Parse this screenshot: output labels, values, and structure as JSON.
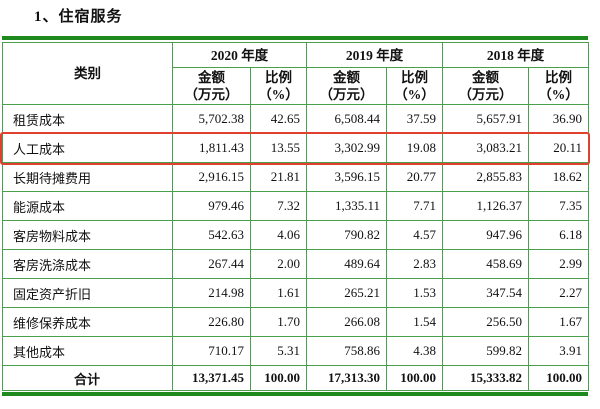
{
  "title": "1、住宿服务",
  "table": {
    "category_header": "类别",
    "years": [
      "2020 年度",
      "2019 年度",
      "2018 年度"
    ],
    "sub_header": {
      "amount_line1": "金额",
      "amount_line2": "（万元）",
      "ratio_line1": "比例",
      "ratio_line2": "（%）"
    },
    "rows": [
      {
        "category": "租赁成本",
        "highlighted": false,
        "values": [
          "5,702.38",
          "42.65",
          "6,508.44",
          "37.59",
          "5,657.91",
          "36.90"
        ]
      },
      {
        "category": "人工成本",
        "highlighted": true,
        "values": [
          "1,811.43",
          "13.55",
          "3,302.99",
          "19.08",
          "3,083.21",
          "20.11"
        ]
      },
      {
        "category": "长期待摊费用",
        "highlighted": false,
        "values": [
          "2,916.15",
          "21.81",
          "3,596.15",
          "20.77",
          "2,855.83",
          "18.62"
        ]
      },
      {
        "category": "能源成本",
        "highlighted": false,
        "values": [
          "979.46",
          "7.32",
          "1,335.11",
          "7.71",
          "1,126.37",
          "7.35"
        ]
      },
      {
        "category": "客房物料成本",
        "highlighted": false,
        "values": [
          "542.63",
          "4.06",
          "790.82",
          "4.57",
          "947.96",
          "6.18"
        ]
      },
      {
        "category": "客房洗涤成本",
        "highlighted": false,
        "values": [
          "267.44",
          "2.00",
          "489.64",
          "2.83",
          "458.69",
          "2.99"
        ]
      },
      {
        "category": "固定资产折旧",
        "highlighted": false,
        "values": [
          "214.98",
          "1.61",
          "265.21",
          "1.53",
          "347.54",
          "2.27"
        ]
      },
      {
        "category": "维修保养成本",
        "highlighted": false,
        "values": [
          "226.80",
          "1.70",
          "266.08",
          "1.54",
          "256.50",
          "1.67"
        ]
      },
      {
        "category": "其他成本",
        "highlighted": false,
        "values": [
          "710.17",
          "5.31",
          "758.86",
          "4.38",
          "599.82",
          "3.91"
        ]
      }
    ],
    "total_row": {
      "category": "合计",
      "values": [
        "13,371.45",
        "100.00",
        "17,313.30",
        "100.00",
        "15,333.82",
        "100.00"
      ]
    }
  },
  "colors": {
    "table_border_green": "#4aa04a",
    "rule_dark_green": "#1e8a1e",
    "highlight_red": "#e0412e"
  }
}
